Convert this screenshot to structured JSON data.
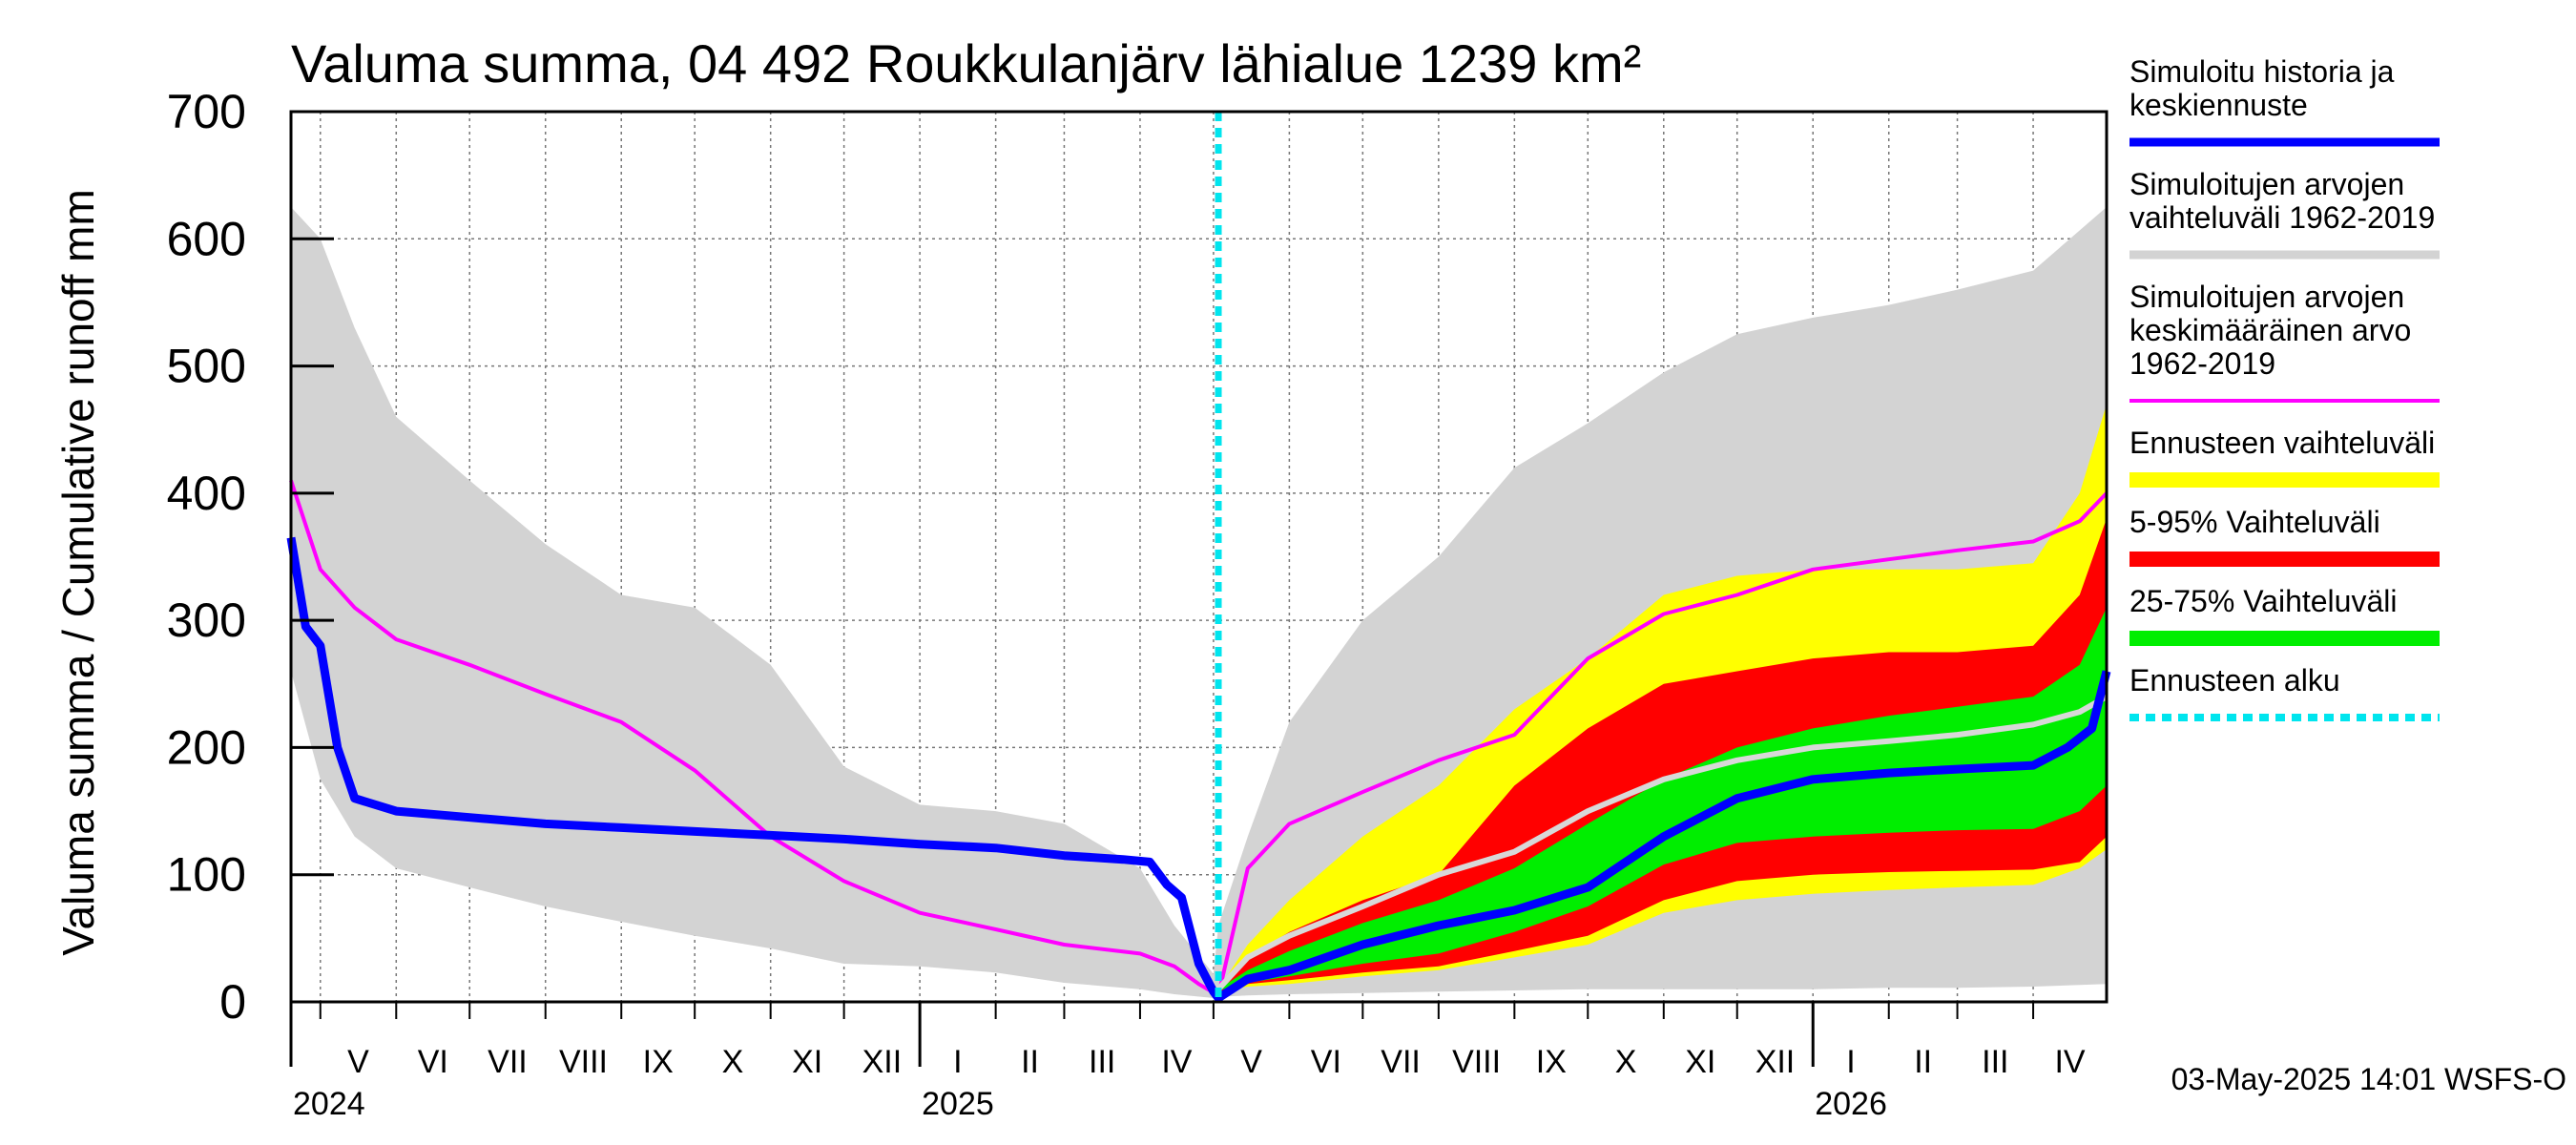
{
  "chart_data": {
    "type": "area",
    "title": "Valuma summa, 04 492 Roukkulanjärv lähialue 1239 km²",
    "ylabel": "Valuma summa / Cumulative runoff    mm",
    "ylim": [
      0,
      700
    ],
    "yticks": [
      "0",
      "100",
      "200",
      "300",
      "400",
      "500",
      "600",
      "700"
    ],
    "x_start": "2024-04-19",
    "x_end": "2026-05-01",
    "forecast_start": "2025-05-03",
    "months": [
      {
        "label": "V",
        "start": "2024-05-01",
        "end": "2024-06-01"
      },
      {
        "label": "VI",
        "start": "2024-06-01",
        "end": "2024-07-01"
      },
      {
        "label": "VII",
        "start": "2024-07-01",
        "end": "2024-08-01"
      },
      {
        "label": "VIII",
        "start": "2024-08-01",
        "end": "2024-09-01"
      },
      {
        "label": "IX",
        "start": "2024-09-01",
        "end": "2024-10-01"
      },
      {
        "label": "X",
        "start": "2024-10-01",
        "end": "2024-11-01"
      },
      {
        "label": "XI",
        "start": "2024-11-01",
        "end": "2024-12-01"
      },
      {
        "label": "XII",
        "start": "2024-12-01",
        "end": "2025-01-01"
      },
      {
        "label": "I",
        "start": "2025-01-01",
        "end": "2025-02-01"
      },
      {
        "label": "II",
        "start": "2025-02-01",
        "end": "2025-03-01"
      },
      {
        "label": "III",
        "start": "2025-03-01",
        "end": "2025-04-01"
      },
      {
        "label": "IV",
        "start": "2025-04-01",
        "end": "2025-05-01"
      },
      {
        "label": "V",
        "start": "2025-05-01",
        "end": "2025-06-01"
      },
      {
        "label": "VI",
        "start": "2025-06-01",
        "end": "2025-07-01"
      },
      {
        "label": "VII",
        "start": "2025-07-01",
        "end": "2025-08-01"
      },
      {
        "label": "VIII",
        "start": "2025-08-01",
        "end": "2025-09-01"
      },
      {
        "label": "IX",
        "start": "2025-09-01",
        "end": "2025-10-01"
      },
      {
        "label": "X",
        "start": "2025-10-01",
        "end": "2025-11-01"
      },
      {
        "label": "XI",
        "start": "2025-11-01",
        "end": "2025-12-01"
      },
      {
        "label": "XII",
        "start": "2025-12-01",
        "end": "2026-01-01"
      },
      {
        "label": "I",
        "start": "2026-01-01",
        "end": "2026-02-01"
      },
      {
        "label": "II",
        "start": "2026-02-01",
        "end": "2026-03-01"
      },
      {
        "label": "III",
        "start": "2026-03-01",
        "end": "2026-04-01"
      },
      {
        "label": "IV",
        "start": "2026-04-01",
        "end": "2026-05-01"
      }
    ],
    "years": [
      {
        "label": "2024",
        "date": "2024-04-19"
      },
      {
        "label": "2025",
        "date": "2025-01-01"
      },
      {
        "label": "2026",
        "date": "2026-01-01"
      }
    ],
    "series": [
      {
        "name": "Simuloitujen arvojen vaihteluväli 1962-2019",
        "kind": "band",
        "color": "#d3d3d3",
        "x": [
          "2024-04-19",
          "2024-05-01",
          "2024-05-15",
          "2024-06-01",
          "2024-07-01",
          "2024-08-01",
          "2024-09-01",
          "2024-10-01",
          "2024-11-01",
          "2024-12-01",
          "2025-01-01",
          "2025-02-01",
          "2025-03-01",
          "2025-04-01",
          "2025-04-15",
          "2025-05-01",
          "2025-05-03",
          "2025-05-15",
          "2025-06-01",
          "2025-07-01",
          "2025-08-01",
          "2025-09-01",
          "2025-10-01",
          "2025-11-01",
          "2025-12-01",
          "2026-01-01",
          "2026-02-01",
          "2026-03-01",
          "2026-04-01",
          "2026-05-01"
        ],
        "upper": [
          625,
          600,
          530,
          460,
          410,
          360,
          320,
          310,
          265,
          185,
          155,
          150,
          140,
          105,
          60,
          22,
          60,
          130,
          220,
          300,
          350,
          420,
          455,
          495,
          525,
          538,
          548,
          560,
          575,
          625
        ],
        "lower": [
          260,
          175,
          130,
          105,
          90,
          75,
          63,
          52,
          42,
          30,
          28,
          23,
          15,
          10,
          6,
          3,
          4,
          5,
          6,
          7,
          8,
          9,
          10,
          10,
          10,
          10,
          11,
          11,
          12,
          14
        ]
      },
      {
        "name": "Ennusteen vaihteluväli",
        "kind": "band",
        "color": "#ffff00",
        "x": [
          "2025-05-03",
          "2025-05-15",
          "2025-06-01",
          "2025-07-01",
          "2025-08-01",
          "2025-09-01",
          "2025-10-01",
          "2025-11-01",
          "2025-12-01",
          "2026-01-01",
          "2026-02-01",
          "2026-03-01",
          "2026-04-01",
          "2026-04-20",
          "2026-05-01"
        ],
        "upper": [
          10,
          45,
          80,
          130,
          170,
          230,
          270,
          320,
          335,
          340,
          340,
          340,
          345,
          400,
          470
        ],
        "lower": [
          8,
          12,
          14,
          20,
          25,
          35,
          45,
          70,
          80,
          85,
          88,
          90,
          92,
          105,
          120
        ]
      },
      {
        "name": "5-95% Vaihteluväli",
        "kind": "band",
        "color": "#ff0000",
        "x": [
          "2025-05-03",
          "2025-05-15",
          "2025-06-01",
          "2025-07-01",
          "2025-08-01",
          "2025-09-01",
          "2025-10-01",
          "2025-11-01",
          "2025-12-01",
          "2026-01-01",
          "2026-02-01",
          "2026-03-01",
          "2026-04-01",
          "2026-04-20",
          "2026-05-01"
        ],
        "upper": [
          10,
          35,
          55,
          80,
          100,
          170,
          215,
          250,
          260,
          270,
          275,
          275,
          280,
          320,
          380
        ],
        "lower": [
          8,
          14,
          17,
          23,
          28,
          40,
          52,
          80,
          95,
          100,
          102,
          103,
          104,
          110,
          130
        ]
      },
      {
        "name": "25-75% Vaihteluväli",
        "kind": "band",
        "color": "#00ee00",
        "x": [
          "2025-05-03",
          "2025-05-15",
          "2025-06-01",
          "2025-07-01",
          "2025-08-01",
          "2025-09-01",
          "2025-10-01",
          "2025-11-01",
          "2025-12-01",
          "2026-01-01",
          "2026-02-01",
          "2026-03-01",
          "2026-04-01",
          "2026-04-20",
          "2026-05-01"
        ],
        "upper": [
          10,
          25,
          40,
          62,
          80,
          105,
          140,
          175,
          200,
          215,
          225,
          232,
          240,
          265,
          310
        ],
        "lower": [
          9,
          15,
          20,
          30,
          38,
          55,
          75,
          108,
          125,
          130,
          133,
          135,
          136,
          150,
          170
        ]
      },
      {
        "name": "Simuloitujen arvojen keskimääräinen arvo 1962-2019",
        "kind": "line",
        "color": "#ff00ff",
        "x": [
          "2024-04-19",
          "2024-05-01",
          "2024-05-15",
          "2024-06-01",
          "2024-07-01",
          "2024-08-01",
          "2024-09-01",
          "2024-10-01",
          "2024-11-01",
          "2024-12-01",
          "2025-01-01",
          "2025-02-01",
          "2025-03-01",
          "2025-04-01",
          "2025-04-15",
          "2025-04-25",
          "2025-05-03",
          "2025-05-15",
          "2025-06-01",
          "2025-07-01",
          "2025-08-01",
          "2025-09-01",
          "2025-10-01",
          "2025-11-01",
          "2025-12-01",
          "2026-01-01",
          "2026-02-01",
          "2026-03-01",
          "2026-04-01",
          "2026-04-20",
          "2026-05-01"
        ],
        "values": [
          410,
          340,
          310,
          285,
          265,
          242,
          220,
          182,
          130,
          95,
          70,
          57,
          45,
          38,
          28,
          14,
          5,
          105,
          140,
          165,
          190,
          210,
          270,
          305,
          320,
          340,
          348,
          355,
          362,
          378,
          400
        ]
      },
      {
        "name": "Keskiennuste (mediaani)",
        "kind": "line",
        "color": "#d8d8d8",
        "x": [
          "2025-05-03",
          "2025-05-15",
          "2025-06-01",
          "2025-07-01",
          "2025-08-01",
          "2025-09-01",
          "2025-10-01",
          "2025-11-01",
          "2025-12-01",
          "2026-01-01",
          "2026-02-01",
          "2026-03-01",
          "2026-04-01",
          "2026-04-20",
          "2026-05-01"
        ],
        "values": [
          10,
          35,
          52,
          75,
          100,
          118,
          150,
          175,
          190,
          200,
          205,
          210,
          218,
          228,
          240
        ]
      },
      {
        "name": "Simuloitu historia ja keskiennuste",
        "kind": "line",
        "color": "#0000ff",
        "x": [
          "2024-04-19",
          "2024-04-25",
          "2024-05-01",
          "2024-05-08",
          "2024-05-15",
          "2024-06-01",
          "2024-07-01",
          "2024-08-01",
          "2024-09-01",
          "2024-10-01",
          "2024-11-01",
          "2024-12-01",
          "2025-01-01",
          "2025-02-01",
          "2025-03-01",
          "2025-03-25",
          "2025-04-05",
          "2025-04-12",
          "2025-04-18",
          "2025-04-25",
          "2025-05-01",
          "2025-05-03",
          "2025-05-15",
          "2025-06-01",
          "2025-07-01",
          "2025-08-01",
          "2025-09-01",
          "2025-10-01",
          "2025-11-01",
          "2025-12-01",
          "2026-01-01",
          "2026-02-01",
          "2026-03-01",
          "2026-04-01",
          "2026-04-15",
          "2026-04-25",
          "2026-05-01"
        ],
        "values": [
          365,
          295,
          280,
          200,
          160,
          150,
          145,
          140,
          137,
          134,
          131,
          128,
          124,
          121,
          115,
          112,
          110,
          92,
          82,
          30,
          8,
          3,
          18,
          25,
          45,
          60,
          72,
          90,
          130,
          160,
          175,
          180,
          183,
          186,
          200,
          215,
          260
        ]
      },
      {
        "name": "Ennusteen alku",
        "kind": "vline",
        "color": "#00e5ee",
        "date": "2025-05-03"
      }
    ],
    "legend": {
      "placement": "right",
      "entries": [
        {
          "text": "Simuloitu historia ja\nkeskiennuste",
          "color": "#0000ff",
          "style": "line"
        },
        {
          "text": "Simuloitujen arvojen\nvaihteluväli 1962-2019",
          "color": "#d3d3d3",
          "style": "line"
        },
        {
          "text": "Simuloitujen arvojen\nkeskimääräinen arvo\n   1962-2019",
          "color": "#ff00ff",
          "style": "thin"
        },
        {
          "text": "Ennusteen vaihteluväli",
          "color": "#ffff00",
          "style": "band"
        },
        {
          "text": "5-95% Vaihteluväli",
          "color": "#ff0000",
          "style": "band"
        },
        {
          "text": "25-75% Vaihteluväli",
          "color": "#00ee00",
          "style": "band"
        },
        {
          "text": "Ennusteen alku",
          "color": "#00e5ee",
          "style": "dashed"
        }
      ]
    },
    "grid": true,
    "footer": "03-May-2025 14:01 WSFS-O"
  }
}
